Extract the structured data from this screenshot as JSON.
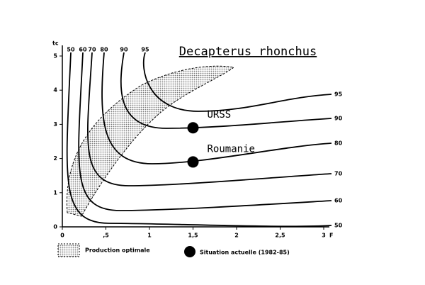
{
  "chart_data": {
    "type": "scatter",
    "title": "Decapterus rhonchus",
    "x": [
      1.5,
      1.5
    ],
    "y": [
      2.9,
      1.9
    ],
    "point_labels": [
      "URSS",
      "Roumanie"
    ],
    "color": "#000000",
    "xlim": [
      0,
      3
    ],
    "ylim": [
      0,
      5
    ],
    "xticks": [
      0,
      {
        "value": 0.5,
        "label": ",5"
      },
      1,
      {
        "value": 1.5,
        "label": "1,5"
      },
      2,
      {
        "value": 2.5,
        "label": "2,5"
      },
      3
    ],
    "yticks": [
      0,
      1,
      2,
      3,
      4,
      5
    ],
    "xlabel": "F",
    "ylabel": "tc",
    "contour_labels": [
      "50",
      "60",
      "70",
      "80",
      "90",
      "95"
    ],
    "legend": [
      "Production optimale",
      "Situation actuelle (1982-85)"
    ]
  }
}
